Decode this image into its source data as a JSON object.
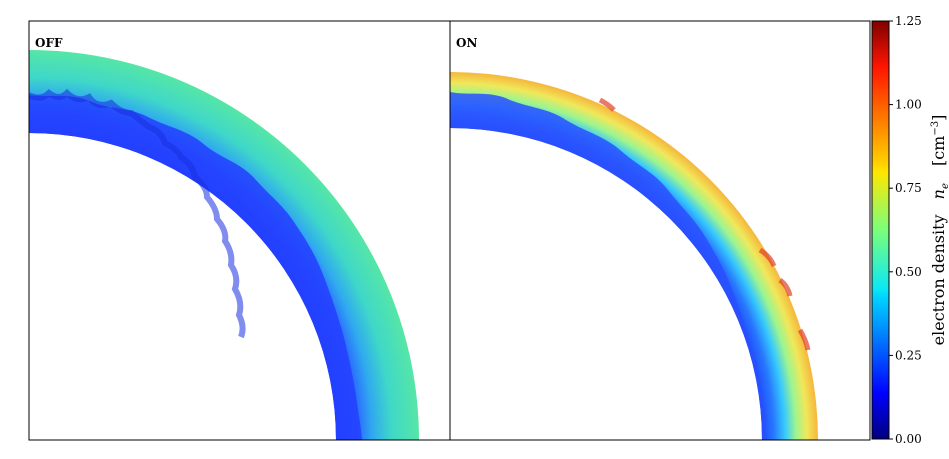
{
  "panels": [
    {
      "label": "OFF"
    },
    {
      "label": "ON"
    }
  ],
  "colorbar": {
    "label": "electron density",
    "symbol": "n",
    "symbol_sub": "e",
    "units": "[cm",
    "units_exp": "−3",
    "units_close": "]",
    "ticks": [
      "0.00",
      "0.25",
      "0.50",
      "0.75",
      "1.00",
      "1.25"
    ]
  },
  "chart_data": {
    "type": "heatmap",
    "title": "",
    "panels": [
      "OFF",
      "ON"
    ],
    "colorbar": {
      "label": "electron density n_e [cm^-3]",
      "range": [
        0.0,
        1.25
      ],
      "ticks": [
        0.0,
        0.25,
        0.5,
        0.75,
        1.0,
        1.25
      ],
      "colormap": "jet"
    },
    "description_values": {
      "OFF": {
        "inner_shell": [
          0.0,
          0.1
        ],
        "outer_shell": [
          0.25,
          0.35
        ]
      },
      "ON": {
        "inner_shell": [
          0.0,
          0.15
        ],
        "outer_shell": [
          0.3,
          1.1
        ]
      }
    }
  }
}
